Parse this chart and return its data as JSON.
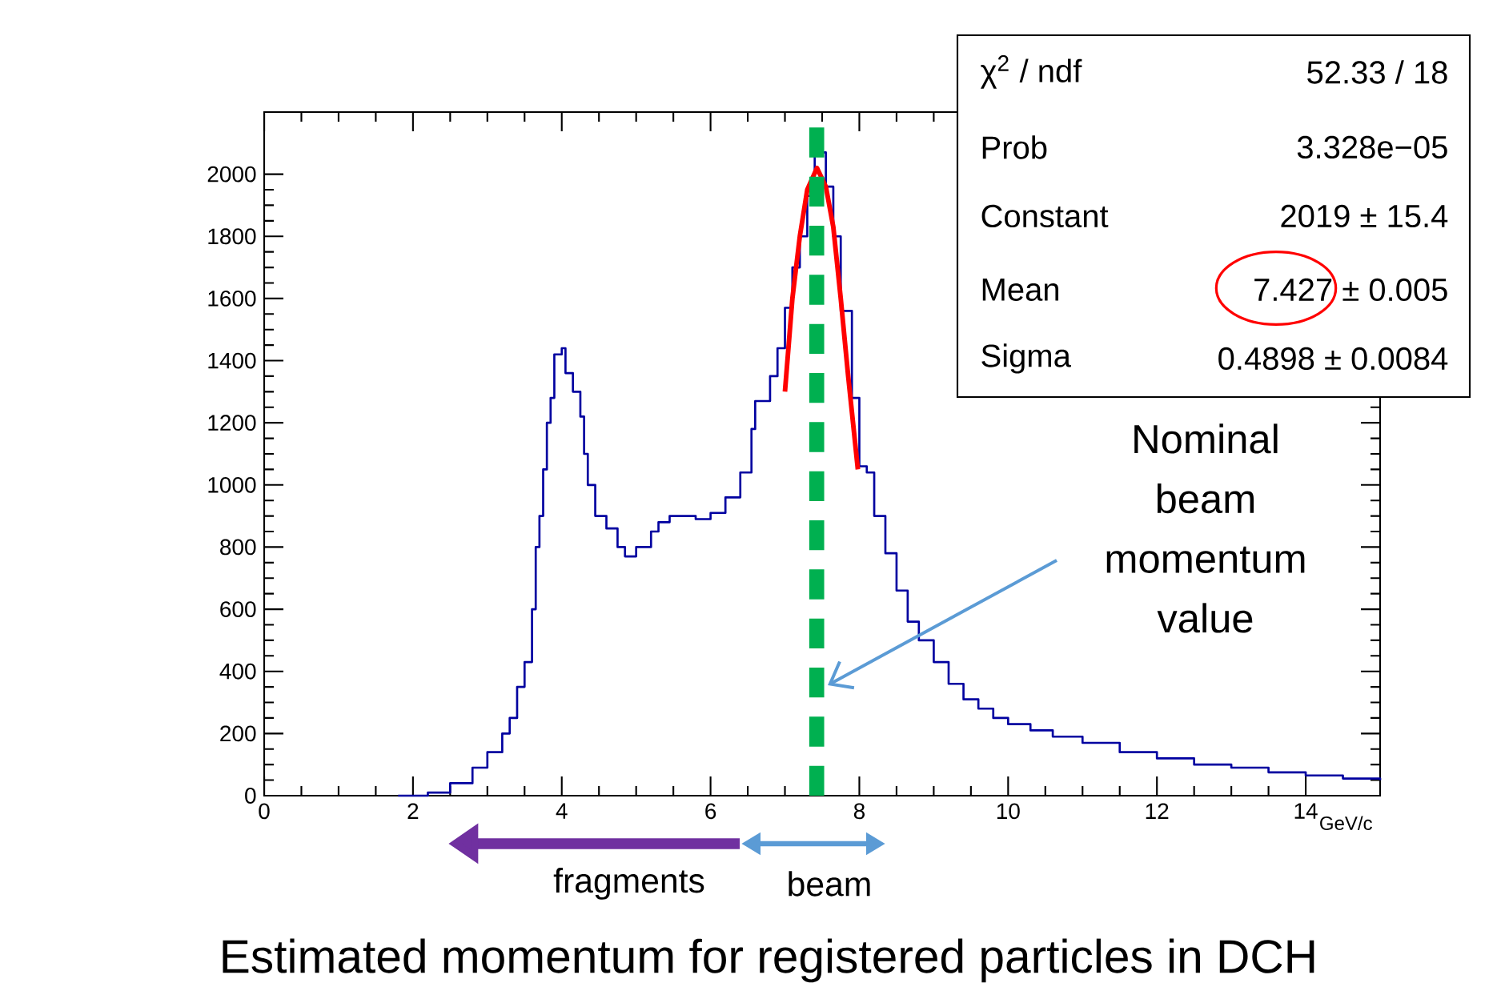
{
  "chart_data": {
    "type": "step",
    "title": "Estimated momentum for registered particles in DCH",
    "xlabel": "GeV/c",
    "xlim": [
      0,
      15
    ],
    "ylim": [
      0,
      2200
    ],
    "xticks": [
      0,
      2,
      4,
      6,
      8,
      10,
      12,
      14
    ],
    "yticks": [
      0,
      200,
      400,
      600,
      800,
      1000,
      1200,
      1400,
      1600,
      1800,
      2000
    ],
    "series": [
      {
        "color": "#0000a0",
        "x": [
          1.8,
          2.2,
          2.5,
          2.8,
          3.0,
          3.2,
          3.3,
          3.4,
          3.5,
          3.6,
          3.65,
          3.7,
          3.75,
          3.8,
          3.85,
          3.9,
          4.0,
          4.05,
          4.15,
          4.25,
          4.3,
          4.35,
          4.45,
          4.6,
          4.75,
          4.85,
          5.0,
          5.2,
          5.3,
          5.45,
          5.6,
          5.8,
          6.0,
          6.2,
          6.4,
          6.55,
          6.6,
          6.8,
          6.9,
          7.0,
          7.1,
          7.2,
          7.3,
          7.4,
          7.5,
          7.55,
          7.65,
          7.75,
          7.9,
          8.0,
          8.1,
          8.2,
          8.35,
          8.5,
          8.65,
          8.8,
          9.0,
          9.2,
          9.4,
          9.6,
          9.8,
          10.0,
          10.3,
          10.6,
          11.0,
          11.5,
          12.0,
          12.5,
          13.0,
          13.5,
          14.0,
          14.5,
          15.0
        ],
        "values": [
          0,
          10,
          40,
          90,
          140,
          200,
          250,
          350,
          430,
          600,
          800,
          900,
          1050,
          1200,
          1280,
          1420,
          1440,
          1360,
          1300,
          1220,
          1100,
          1000,
          900,
          860,
          800,
          770,
          800,
          850,
          880,
          900,
          900,
          890,
          910,
          960,
          1040,
          1180,
          1270,
          1350,
          1440,
          1570,
          1700,
          1800,
          1930,
          2060,
          2070,
          1960,
          1800,
          1560,
          1280,
          1060,
          1040,
          900,
          780,
          660,
          560,
          500,
          430,
          360,
          310,
          280,
          250,
          230,
          210,
          190,
          170,
          140,
          120,
          100,
          90,
          75,
          65,
          55,
          50
        ]
      },
      {
        "type": "line",
        "color": "#ff0000",
        "x": [
          7.0,
          7.1,
          7.2,
          7.3,
          7.43,
          7.55,
          7.65,
          7.75,
          7.85,
          7.98
        ],
        "values": [
          1300,
          1600,
          1800,
          1950,
          2020,
          1960,
          1830,
          1600,
          1350,
          1050
        ]
      }
    ],
    "ref_lines": [
      {
        "axis": "x",
        "value": 7.427,
        "color": "#00b050",
        "line_style": "dashed"
      }
    ],
    "annotations": [
      "χ$^{2}$ / ndf",
      "52.33 / 18",
      "Prob",
      "3.328e−05",
      "Constant",
      "2019 ± 15.4",
      "Mean",
      "7.427 ± 0.005",
      "Sigma",
      "0.4898 ± 0.0084",
      "Nominal beam momentum value",
      "fragments",
      "beam"
    ]
  }
}
